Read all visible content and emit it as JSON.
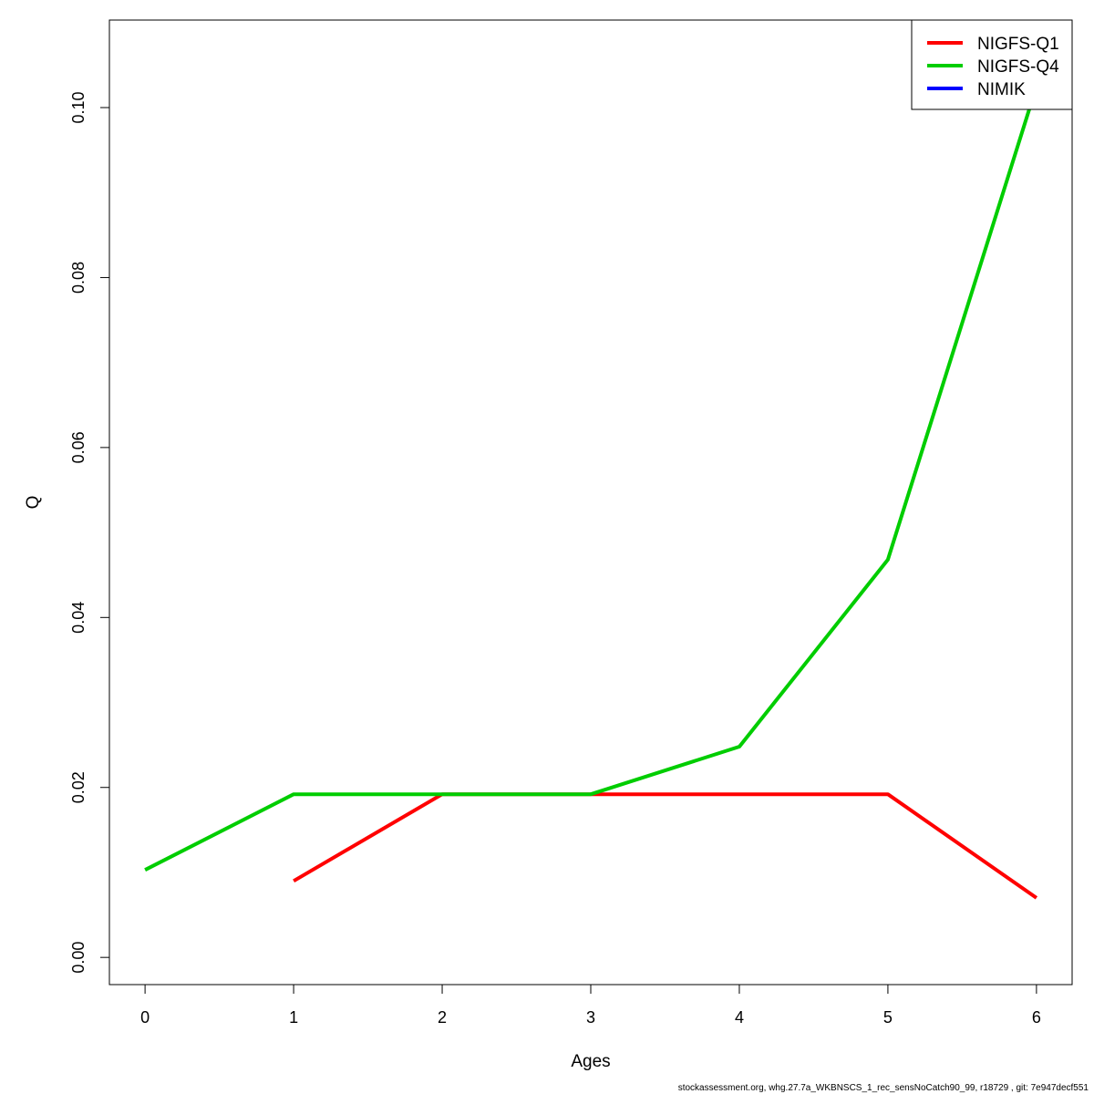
{
  "chart_data": {
    "type": "line",
    "xlabel": "Ages",
    "ylabel": "Q",
    "xlim": [
      -0.24,
      6.24
    ],
    "ylim": [
      -0.0032,
      0.1103
    ],
    "x_ticks": [
      0,
      1,
      2,
      3,
      4,
      5,
      6
    ],
    "y_ticks": [
      0.0,
      0.02,
      0.04,
      0.06,
      0.08,
      0.1
    ],
    "y_tick_labels": [
      "0.00",
      "0.02",
      "0.04",
      "0.06",
      "0.08",
      "0.10"
    ],
    "legend_position": "top-right",
    "series": [
      {
        "name": "NIGFS-Q1",
        "color": "#ff0000",
        "x": [
          1,
          2,
          3,
          4,
          5,
          6
        ],
        "y": [
          0.009,
          0.0192,
          0.0192,
          0.0192,
          0.0192,
          0.007
        ]
      },
      {
        "name": "NIGFS-Q4",
        "color": "#00cd00",
        "x": [
          0,
          1,
          2,
          3,
          4,
          5,
          6
        ],
        "y": [
          0.0103,
          0.0192,
          0.0192,
          0.0192,
          0.0248,
          0.0468,
          0.1025
        ]
      },
      {
        "name": "NIMIK",
        "color": "#0000ff",
        "x": [],
        "y": []
      }
    ]
  },
  "footer": "stockassessment.org, whg.27.7a_WKBNSCS_1_rec_sensNoCatch90_99, r18729 , git: 7e947decf551"
}
